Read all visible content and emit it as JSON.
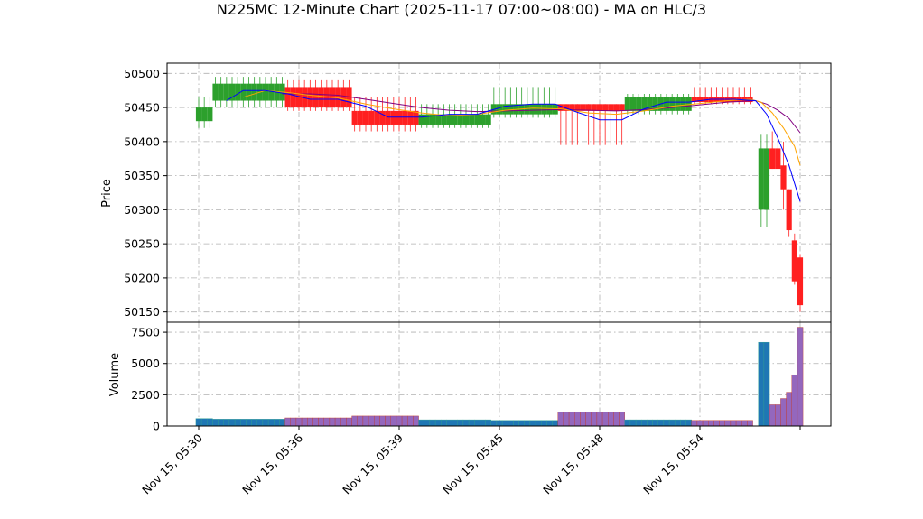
{
  "chart_data": {
    "type": "candlestick",
    "title": "N225MC 12-Minute Chart (2025-11-17 07:00~08:00) - MA on HLC/3",
    "ylabel_price": "Price",
    "ylabel_volume": "Volume",
    "price_ylim": [
      50135,
      50515
    ],
    "price_ticks": [
      "50150",
      "50200",
      "50250",
      "50300",
      "50350",
      "50400",
      "50450",
      "50500"
    ],
    "volume_ylim": [
      0,
      8300
    ],
    "volume_ticks": [
      "0",
      "2500",
      "5000",
      "7500"
    ],
    "x_ticks": [
      {
        "label": "Nov 15, 05:30",
        "index": 0
      },
      {
        "label": "Nov 15, 05:36",
        "index": 18
      },
      {
        "label": "Nov 15, 05:39",
        "index": 36
      },
      {
        "label": "Nov 15, 05:45",
        "index": 54
      },
      {
        "label": "Nov 15, 05:48",
        "index": 72
      },
      {
        "label": "Nov 15, 05:54",
        "index": 90
      }
    ],
    "colors": {
      "up": "#2ca02c",
      "down": "#ff2020",
      "volume_up": "#1f77b4",
      "volume_down": "#9467bd",
      "ma_fast": "#0000ff",
      "ma_mid": "#ffa500",
      "ma_slow": "#800080"
    },
    "segments": [
      {
        "start": 0,
        "end": 2,
        "open": 50430,
        "high": 50465,
        "low": 50420,
        "close": 50450,
        "volume": 600
      },
      {
        "start": 3,
        "end": 15,
        "open": 50460,
        "high": 50495,
        "low": 50450,
        "close": 50485,
        "volume": 550
      },
      {
        "start": 16,
        "end": 27,
        "open": 50480,
        "high": 50490,
        "low": 50445,
        "close": 50450,
        "volume": 650
      },
      {
        "start": 28,
        "end": 39,
        "open": 50445,
        "high": 50465,
        "low": 50415,
        "close": 50425,
        "volume": 800
      },
      {
        "start": 40,
        "end": 52,
        "open": 50425,
        "high": 50455,
        "low": 50420,
        "close": 50440,
        "volume": 500
      },
      {
        "start": 53,
        "end": 64,
        "open": 50440,
        "high": 50480,
        "low": 50435,
        "close": 50455,
        "volume": 450
      },
      {
        "start": 65,
        "end": 76,
        "open": 50455,
        "high": 50455,
        "low": 50395,
        "close": 50445,
        "volume": 1100
      },
      {
        "start": 77,
        "end": 88,
        "open": 50445,
        "high": 50470,
        "low": 50440,
        "close": 50465,
        "volume": 500
      },
      {
        "start": 89,
        "end": 99,
        "open": 50465,
        "high": 50480,
        "low": 50455,
        "close": 50458,
        "volume": 450
      },
      {
        "start": 101,
        "end": 102,
        "open": 50300,
        "high": 50410,
        "low": 50275,
        "close": 50390,
        "volume": 6700
      },
      {
        "start": 103,
        "end": 104,
        "open": 50390,
        "high": 50415,
        "low": 50360,
        "close": 50360,
        "volume": 1700
      },
      {
        "start": 105,
        "end": 105,
        "open": 50365,
        "high": 50400,
        "low": 50300,
        "close": 50330,
        "volume": 2200
      },
      {
        "start": 106,
        "end": 106,
        "open": 50330,
        "high": 50330,
        "low": 50260,
        "close": 50270,
        "volume": 2700
      },
      {
        "start": 107,
        "end": 107,
        "open": 50255,
        "high": 50265,
        "low": 50190,
        "close": 50195,
        "volume": 4100
      },
      {
        "start": 108,
        "end": 108,
        "open": 50230,
        "high": 50235,
        "low": 50150,
        "close": 50160,
        "volume": 7900
      }
    ],
    "ma_fast": [
      [
        5,
        50460
      ],
      [
        8,
        50475
      ],
      [
        12,
        50475
      ],
      [
        16,
        50470
      ],
      [
        20,
        50462
      ],
      [
        25,
        50462
      ],
      [
        30,
        50452
      ],
      [
        34,
        50436
      ],
      [
        40,
        50436
      ],
      [
        45,
        50440
      ],
      [
        50,
        50440
      ],
      [
        55,
        50452
      ],
      [
        60,
        50455
      ],
      [
        64,
        50455
      ],
      [
        68,
        50443
      ],
      [
        72,
        50432
      ],
      [
        76,
        50432
      ],
      [
        80,
        50448
      ],
      [
        84,
        50458
      ],
      [
        88,
        50458
      ],
      [
        92,
        50462
      ],
      [
        96,
        50462
      ],
      [
        100,
        50460
      ],
      [
        102,
        50440
      ],
      [
        104,
        50405
      ],
      [
        106,
        50365
      ],
      [
        108,
        50312
      ]
    ],
    "ma_mid": [
      [
        8,
        50465
      ],
      [
        12,
        50475
      ],
      [
        16,
        50472
      ],
      [
        20,
        50468
      ],
      [
        25,
        50464
      ],
      [
        30,
        50455
      ],
      [
        35,
        50448
      ],
      [
        40,
        50442
      ],
      [
        45,
        50438
      ],
      [
        50,
        50440
      ],
      [
        55,
        50446
      ],
      [
        60,
        50449
      ],
      [
        65,
        50448
      ],
      [
        70,
        50442
      ],
      [
        75,
        50440
      ],
      [
        80,
        50445
      ],
      [
        85,
        50452
      ],
      [
        90,
        50456
      ],
      [
        95,
        50460
      ],
      [
        99,
        50462
      ],
      [
        101,
        50458
      ],
      [
        103,
        50442
      ],
      [
        105,
        50420
      ],
      [
        107,
        50393
      ],
      [
        108,
        50365
      ]
    ],
    "ma_slow": [
      [
        15,
        50470
      ],
      [
        20,
        50470
      ],
      [
        25,
        50468
      ],
      [
        30,
        50462
      ],
      [
        35,
        50456
      ],
      [
        40,
        50450
      ],
      [
        45,
        50446
      ],
      [
        50,
        50444
      ],
      [
        55,
        50445
      ],
      [
        60,
        50446
      ],
      [
        65,
        50447
      ],
      [
        70,
        50446
      ],
      [
        75,
        50445
      ],
      [
        80,
        50447
      ],
      [
        85,
        50450
      ],
      [
        90,
        50454
      ],
      [
        95,
        50458
      ],
      [
        100,
        50460
      ],
      [
        102,
        50455
      ],
      [
        104,
        50446
      ],
      [
        106,
        50434
      ],
      [
        108,
        50413
      ]
    ]
  }
}
